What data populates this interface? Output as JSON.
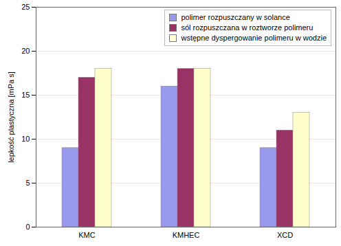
{
  "chart_data": {
    "type": "bar",
    "categories": [
      "KMC",
      "KMHEC",
      "XCD"
    ],
    "series": [
      {
        "name": "polimer rozpuszczany w solance",
        "color": "#9999ee",
        "values": [
          9,
          16,
          9
        ]
      },
      {
        "name": "sól rozpuszczana w roztworze polimeru",
        "color": "#993366",
        "values": [
          17,
          18,
          11
        ]
      },
      {
        "name": "wstępne dyspergowanie polimeru w wodzie",
        "color": "#ffffcc",
        "values": [
          18,
          18,
          13
        ]
      }
    ],
    "y_label": "lepkość plastyczna [mPa s]",
    "ylim": [
      0,
      25
    ],
    "yticks": [
      0,
      5,
      10,
      15,
      20,
      25
    ],
    "grid": true,
    "legend": "top-right"
  }
}
